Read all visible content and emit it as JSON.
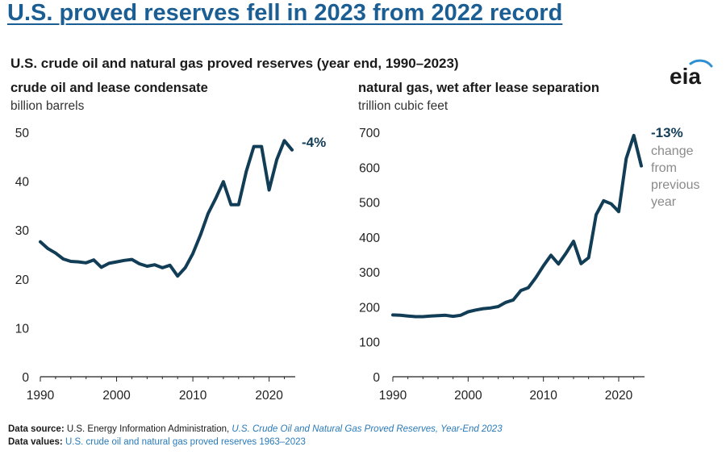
{
  "headline": "U.S. proved reserves fell in 2023 from 2022 record",
  "subtitle": "U.S. crude oil and natural gas proved reserves (year end, 1990–2023)",
  "logo_text": "eia",
  "colors": {
    "line": "#123d56",
    "headline": "#1b5e94",
    "link": "#2a7ab8",
    "note": "#8a8a8a",
    "logo_swoosh": "#2f8fcf"
  },
  "footer": {
    "source_label": "Data source:",
    "source_text": "U.S. Energy Information Administration,",
    "source_link": "U.S. Crude Oil and Natural Gas Proved Reserves, Year-End 2023",
    "values_label": "Data values:",
    "values_link": "U.S. crude oil and natural gas proved reserves 1963–2023"
  },
  "chart_data": [
    {
      "type": "line",
      "title": "crude oil and lease condensate",
      "ylabel": "billion barrels",
      "xlim": [
        1990,
        2023
      ],
      "ylim": [
        0,
        50
      ],
      "x_ticks": [
        1990,
        2000,
        2010,
        2020
      ],
      "y_ticks": [
        0,
        10,
        20,
        30,
        40,
        50
      ],
      "grid": false,
      "annotation": "-4%",
      "x": [
        1990,
        1991,
        1992,
        1993,
        1994,
        1995,
        1996,
        1997,
        1998,
        1999,
        2000,
        2001,
        2002,
        2003,
        2004,
        2005,
        2006,
        2007,
        2008,
        2009,
        2010,
        2011,
        2012,
        2013,
        2014,
        2015,
        2016,
        2017,
        2018,
        2019,
        2020,
        2021,
        2022,
        2023
      ],
      "series": [
        {
          "values": [
            27.6,
            26.2,
            25.3,
            24.1,
            23.6,
            23.5,
            23.3,
            23.9,
            22.4,
            23.2,
            23.5,
            23.8,
            24.0,
            23.1,
            22.6,
            22.9,
            22.3,
            22.8,
            20.6,
            22.3,
            25.2,
            29.0,
            33.4,
            36.5,
            39.9,
            35.2,
            35.2,
            42.0,
            47.1,
            47.1,
            38.2,
            44.4,
            48.3,
            46.4
          ]
        }
      ]
    },
    {
      "type": "line",
      "title": "natural gas, wet after lease separation",
      "ylabel": "trillion cubic feet",
      "xlim": [
        1990,
        2023
      ],
      "ylim": [
        0,
        700
      ],
      "x_ticks": [
        1990,
        2000,
        2010,
        2020
      ],
      "y_ticks": [
        0,
        100,
        200,
        300,
        400,
        500,
        600,
        700
      ],
      "grid": false,
      "annotation": "-13%",
      "annotation_note": [
        "change",
        "from",
        "previous",
        "year"
      ],
      "x": [
        1990,
        1991,
        1992,
        1993,
        1994,
        1995,
        1996,
        1997,
        1998,
        1999,
        2000,
        2001,
        2002,
        2003,
        2004,
        2005,
        2006,
        2007,
        2008,
        2009,
        2010,
        2011,
        2012,
        2013,
        2014,
        2015,
        2016,
        2017,
        2018,
        2019,
        2020,
        2021,
        2022,
        2023
      ],
      "series": [
        {
          "values": [
            177,
            176,
            174,
            172,
            172,
            174,
            175,
            176,
            173,
            176,
            186,
            191,
            195,
            197,
            201,
            213,
            220,
            247,
            255,
            284,
            318,
            348,
            323,
            354,
            388,
            324,
            341,
            464,
            504,
            495,
            473,
            625,
            691,
            604
          ]
        }
      ]
    }
  ]
}
